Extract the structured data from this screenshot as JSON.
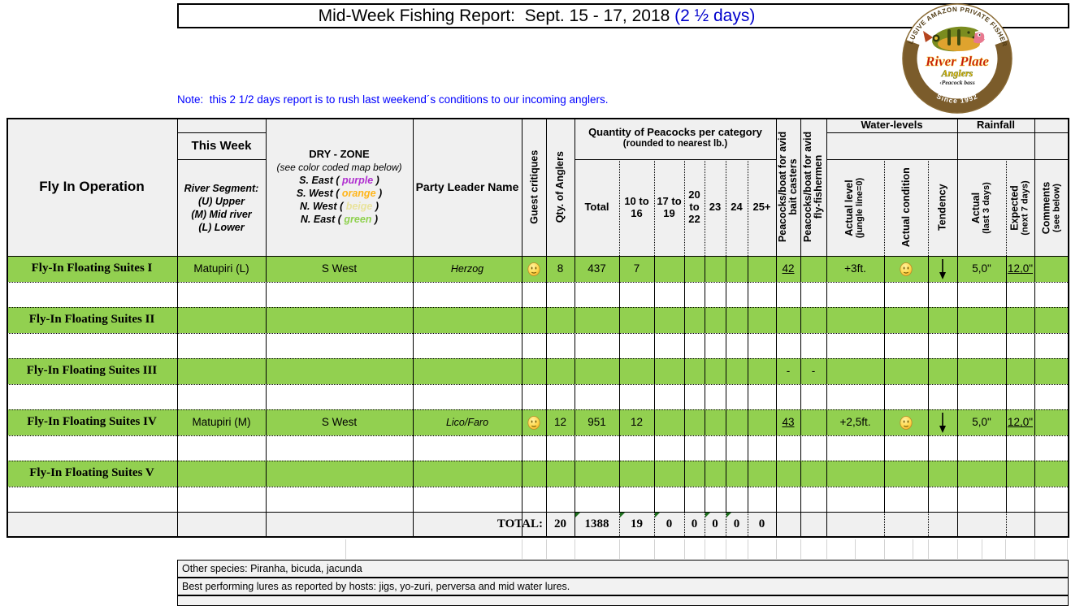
{
  "title": {
    "main": "Mid-Week Fishing Report:  Sept. 15 - 17, 2018 ",
    "highlight": "(2 ½ days)",
    "highlight_color": "#0000cc"
  },
  "note": "Note:  this 2 1/2 days report is to rush last weekend´s conditions to our incoming anglers.",
  "logo": {
    "top_text": "EXCLUSIVE AMAZON PRIVATE FISHERIES",
    "name_line1": "River Plate",
    "name_line2": "Anglers",
    "tagline": "‹Peacock bass",
    "bottom_text": "Since 1992"
  },
  "colors": {
    "row_green": "#92d050",
    "header_gray": "#f0f0f0",
    "note_blue": "#0000ff"
  },
  "header": {
    "operation": "Fly In Operation",
    "this_week": "This Week",
    "segment_lines": [
      "River Segment:",
      "(U) Upper",
      "(M) Mid river",
      "(L) Lower"
    ],
    "dry_zone": {
      "title": "DRY - ZONE",
      "subtitle": "(see color coded map below)",
      "entries": [
        {
          "prefix": "S. East ( ",
          "word": "purple",
          "suffix": " )",
          "color": "#b02fd0"
        },
        {
          "prefix": "S. West ( ",
          "word": "orange",
          "suffix": " )",
          "color": "#ffb519"
        },
        {
          "prefix": "N. West ( ",
          "word": "beige",
          "suffix": " )",
          "color": "#e9e39c"
        },
        {
          "prefix": "N. East ( ",
          "word": "green",
          "suffix": " )",
          "color": "#8fd14f"
        }
      ]
    },
    "party_leader": "Party Leader Name",
    "guest_critiques": "Guest critiques",
    "qty_anglers": "Qty. of Anglers",
    "quantity_title": "Quantity of Peacocks per category",
    "quantity_subtitle": "(rounded to nearest lb.)",
    "size_cols": [
      "Total",
      "10 to 16",
      "17 to 19",
      "20 to 22",
      "23",
      "24",
      "25+"
    ],
    "bait_l1": "Peacocks/boat for avid",
    "bait_l2": "bait casters",
    "fly_l1": "Peacocks/boat for avid",
    "fly_l2": "fly-fishermen",
    "water_levels": "Water-levels",
    "rainfall": "Rainfall",
    "actual_level_l1": "Actual level",
    "actual_level_l2": "(jungle line=0)",
    "actual_condition": "Actual condition",
    "tendency": "Tendency",
    "rain_actual_l1": "Actual",
    "rain_actual_l2": "(last 3 days)",
    "rain_expected_l1": "Expected",
    "rain_expected_l2": "(next 7 days)",
    "comments_l1": "Comments",
    "comments_l2": "(see below)"
  },
  "rows": [
    {
      "name": "Fly-In Floating Suites I",
      "segment": "Matupiri (L)",
      "zone": "S West",
      "leader": "Herzog",
      "critique": "happy",
      "anglers": "8",
      "total": "437",
      "c10_16": "7",
      "c17_19": "",
      "c20_22": "",
      "c23": "",
      "c24": "",
      "c25": "",
      "bait": "42",
      "fly": "",
      "level": "+3ft.",
      "condition": "happy",
      "tendency": "down",
      "rain3": "5,0\"",
      "rain7": "12,0\"",
      "comments": ""
    },
    {
      "name": "Fly-In Floating Suites II",
      "segment": "",
      "zone": "",
      "leader": "",
      "critique": "",
      "anglers": "",
      "total": "",
      "c10_16": "",
      "c17_19": "",
      "c20_22": "",
      "c23": "",
      "c24": "",
      "c25": "",
      "bait": "",
      "fly": "",
      "level": "",
      "condition": "",
      "tendency": "",
      "rain3": "",
      "rain7": "",
      "comments": ""
    },
    {
      "name": "Fly-In Floating Suites III",
      "segment": "",
      "zone": "",
      "leader": "",
      "critique": "",
      "anglers": "",
      "total": "",
      "c10_16": "",
      "c17_19": "",
      "c20_22": "",
      "c23": "",
      "c24": "",
      "c25": "",
      "bait": "-",
      "fly": "-",
      "level": "",
      "condition": "",
      "tendency": "",
      "rain3": "",
      "rain7": "",
      "comments": ""
    },
    {
      "name": "Fly-In Floating Suites IV",
      "segment": "Matupiri (M)",
      "zone": "S West",
      "leader": "Lico/Faro",
      "critique": "happy",
      "anglers": "12",
      "total": "951",
      "c10_16": "12",
      "c17_19": "",
      "c20_22": "",
      "c23": "",
      "c24": "",
      "c25": "",
      "bait": "43",
      "fly": "",
      "level": "+2,5ft.",
      "condition": "happy",
      "tendency": "down",
      "rain3": "5,0\"",
      "rain7": "12,0\"",
      "comments": ""
    },
    {
      "name": "Fly-In Floating Suites V",
      "segment": "",
      "zone": "",
      "leader": "",
      "critique": "",
      "anglers": "",
      "total": "",
      "c10_16": "",
      "c17_19": "",
      "c20_22": "",
      "c23": "",
      "c24": "",
      "c25": "",
      "bait": "",
      "fly": "",
      "level": "",
      "condition": "",
      "tendency": "",
      "rain3": "",
      "rain7": "",
      "comments": ""
    }
  ],
  "totals": {
    "label": "TOTAL:",
    "anglers": "20",
    "total": "1388",
    "c10_16": "19",
    "c17_19": "0",
    "c20_22": "0",
    "c23": "0",
    "c24": "0",
    "c25": "0"
  },
  "footer": {
    "other_species": "Other species: Piranha, bicuda, jacunda",
    "lures": "Best performing lures as reported by hosts: jigs, yo-zuri, perversa and mid water lures."
  }
}
